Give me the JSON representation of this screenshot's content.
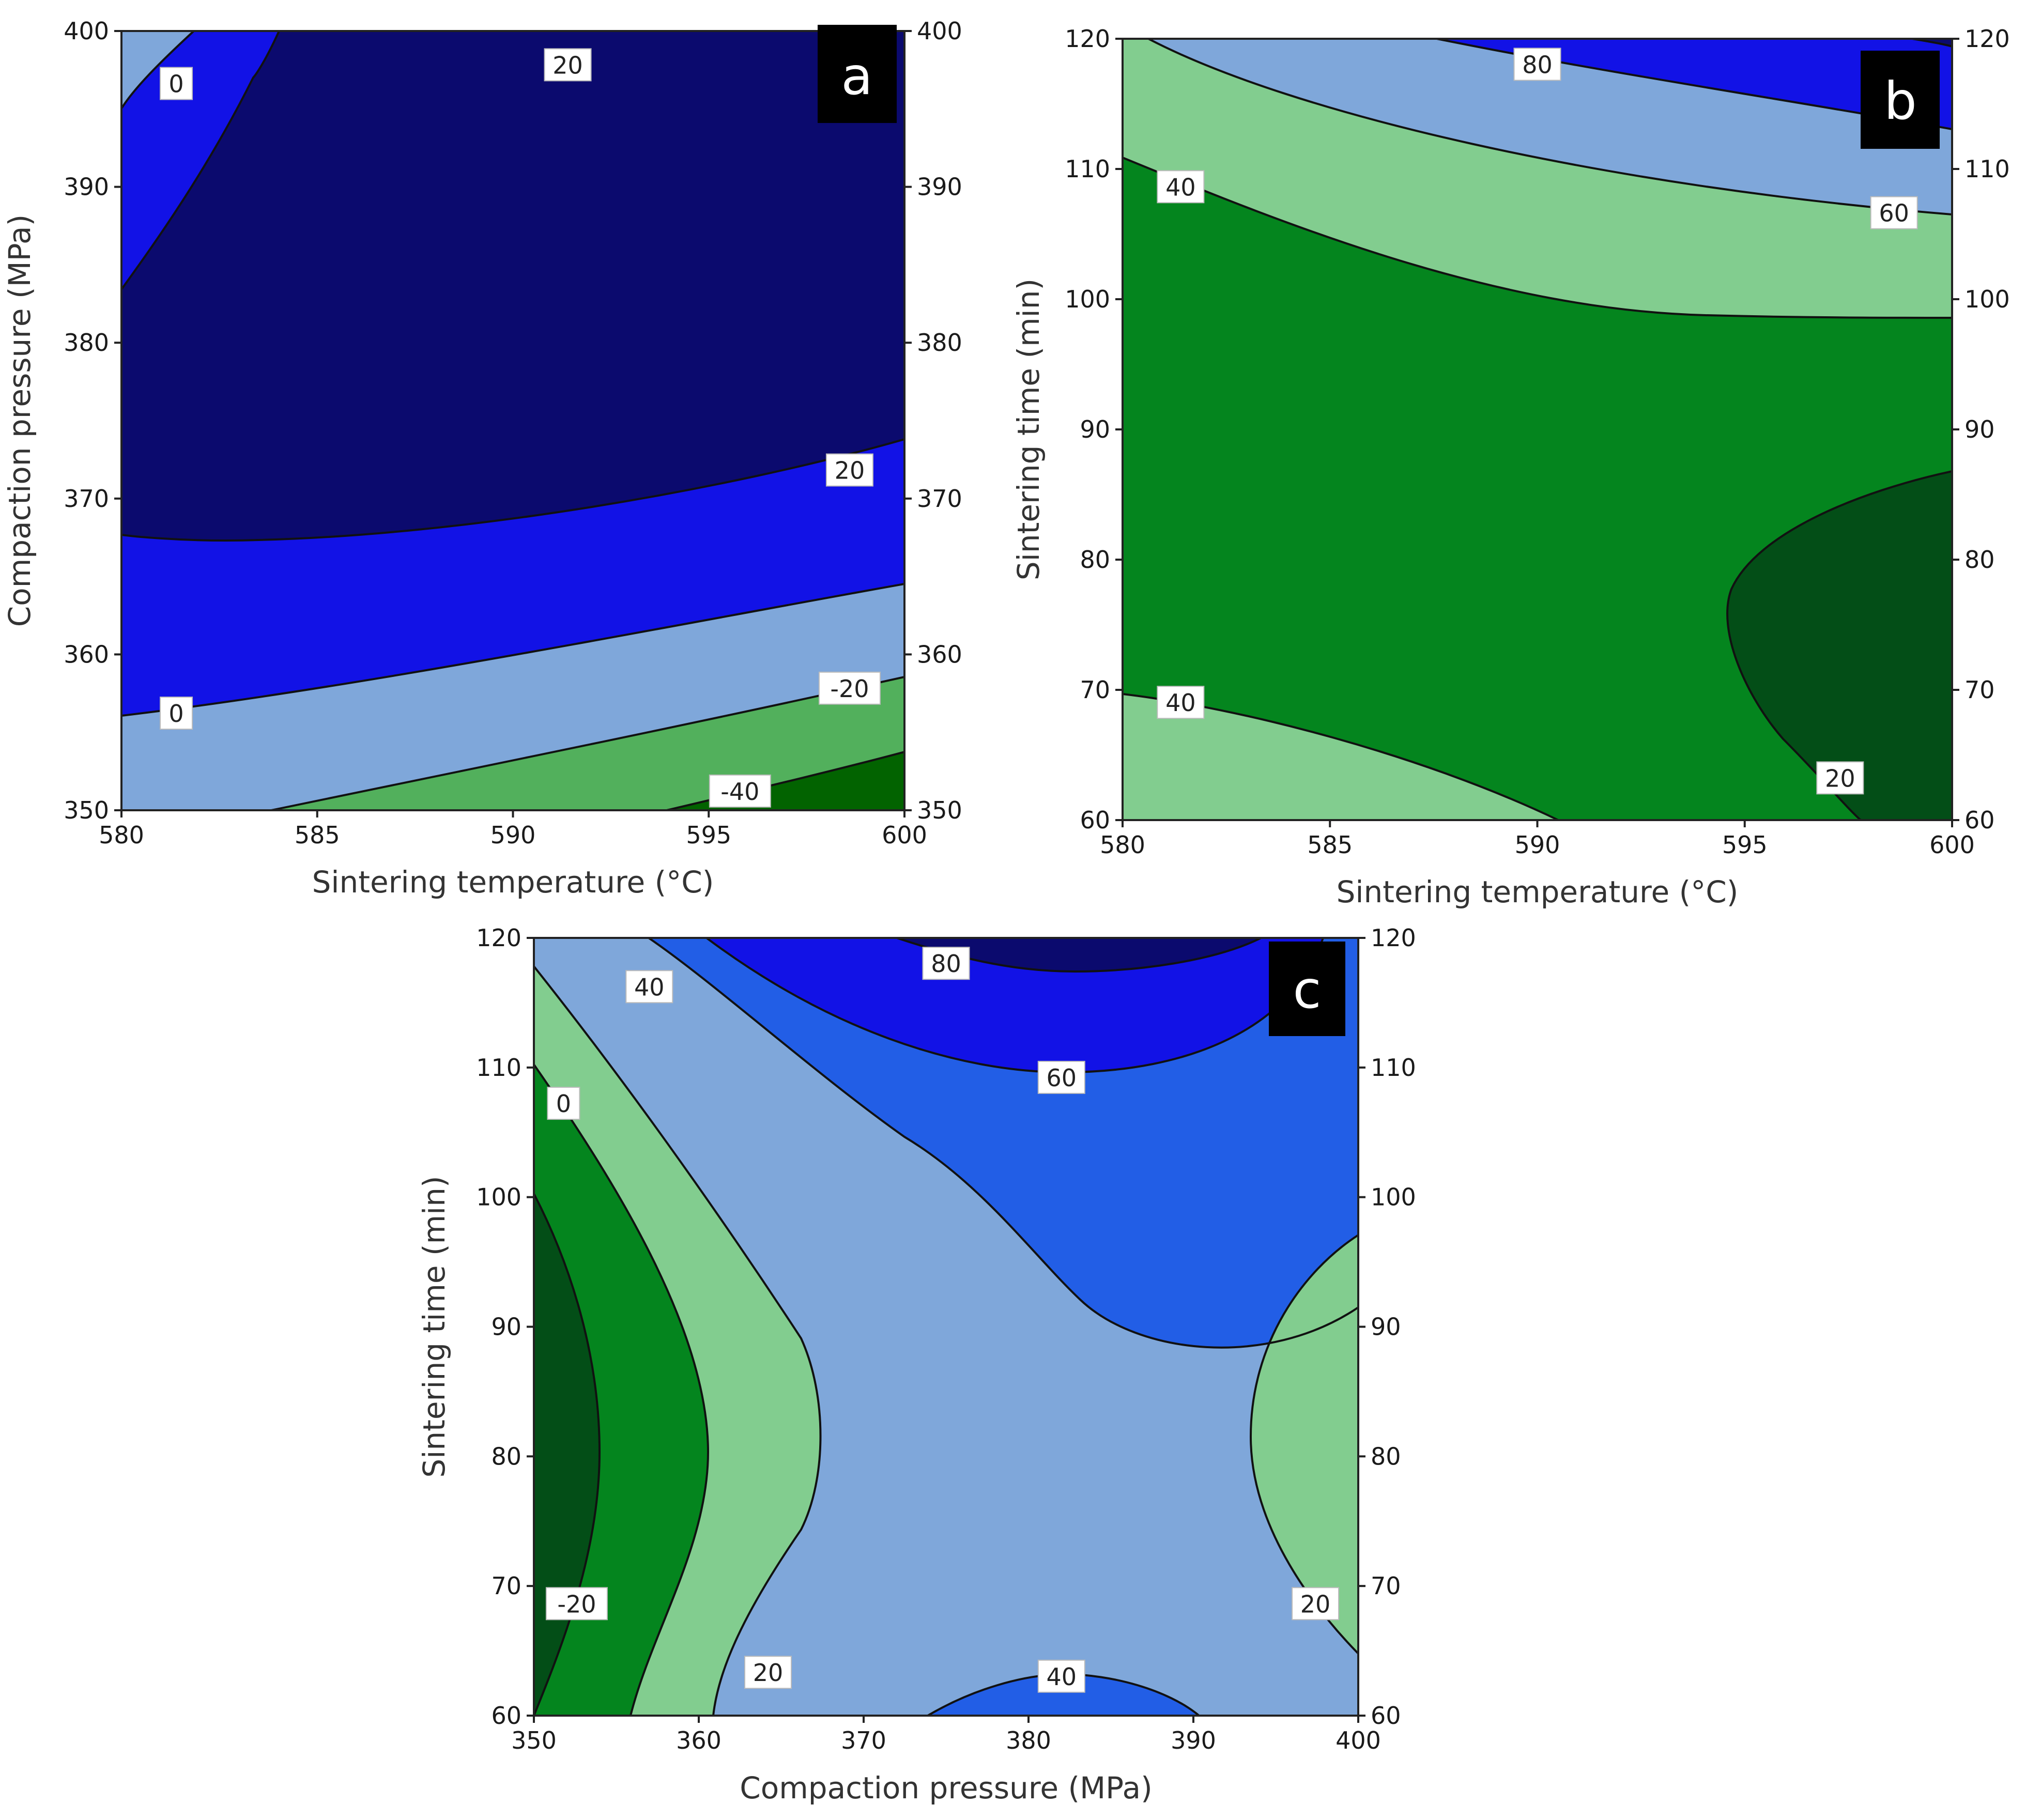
{
  "colors": {
    "very_dark_blue": "#0b0a6e",
    "blue": "#1212e6",
    "medium_blue": "#225ee6",
    "light_blue": "#7fa7da",
    "light_green": "#82cd8f",
    "green": "#04851e",
    "mid_green": "#52b05c",
    "dark_green": "#034e17",
    "darkest_green": "#026300",
    "label_bg": "#000000",
    "label_fg": "#ffffff"
  },
  "chart_data": [
    {
      "type": "contour",
      "panel": "a",
      "xlabel": "Sintering temperature (°C)",
      "ylabel": "Compaction pressure (MPa)",
      "xlim": [
        580,
        600
      ],
      "ylim": [
        350,
        400
      ],
      "x_ticks": [
        "580",
        "585",
        "590",
        "595",
        "600"
      ],
      "y_ticks": [
        "350",
        "360",
        "370",
        "380",
        "390",
        "400"
      ],
      "y_ticks_right": [
        "350",
        "360",
        "370",
        "380",
        "390",
        "400"
      ],
      "contour_levels": [
        -40,
        -20,
        0,
        20
      ],
      "contour_labels": [
        {
          "text": "0",
          "x": 581.4,
          "y": 396.6
        },
        {
          "text": "20",
          "x": 591.4,
          "y": 397.8
        },
        {
          "text": "20",
          "x": 598.6,
          "y": 371.8
        },
        {
          "text": "0",
          "x": 581.4,
          "y": 356.2
        },
        {
          "text": "-20",
          "x": 598.6,
          "y": 357.8
        },
        {
          "text": "-40",
          "x": 595.8,
          "y": 351.2
        }
      ]
    },
    {
      "type": "contour",
      "panel": "b",
      "xlabel": "Sintering temperature (°C)",
      "ylabel": "Sintering time (min)",
      "xlim": [
        580,
        600
      ],
      "ylim": [
        60,
        120
      ],
      "x_ticks": [
        "580",
        "585",
        "590",
        "595",
        "600"
      ],
      "y_ticks": [
        "60",
        "70",
        "80",
        "90",
        "100",
        "110",
        "120"
      ],
      "y_ticks_right": [
        "60",
        "70",
        "80",
        "90",
        "100",
        "110",
        "120"
      ],
      "contour_levels": [
        20,
        40,
        60,
        80
      ],
      "contour_labels": [
        {
          "text": "80",
          "x": 590.0,
          "y": 118.0
        },
        {
          "text": "40",
          "x": 581.4,
          "y": 108.6
        },
        {
          "text": "60",
          "x": 598.6,
          "y": 106.6
        },
        {
          "text": "40",
          "x": 581.4,
          "y": 69.0
        },
        {
          "text": "20",
          "x": 597.3,
          "y": 63.2
        }
      ]
    },
    {
      "type": "contour",
      "panel": "c",
      "xlabel": "Compaction pressure (MPa)",
      "ylabel": "Sintering time (min)",
      "xlim": [
        350,
        400
      ],
      "ylim": [
        60,
        120
      ],
      "x_ticks": [
        "350",
        "360",
        "370",
        "380",
        "390",
        "400"
      ],
      "y_ticks": [
        "60",
        "70",
        "80",
        "90",
        "100",
        "110",
        "120"
      ],
      "y_ticks_right": [
        "60",
        "70",
        "80",
        "90",
        "100",
        "110",
        "120"
      ],
      "contour_levels": [
        -20,
        0,
        20,
        40,
        60,
        80
      ],
      "contour_labels": [
        {
          "text": "80",
          "x": 375.0,
          "y": 118.0
        },
        {
          "text": "40",
          "x": 357.0,
          "y": 116.2
        },
        {
          "text": "60",
          "x": 382.0,
          "y": 109.2
        },
        {
          "text": "0",
          "x": 351.8,
          "y": 107.2
        },
        {
          "text": "-20",
          "x": 352.6,
          "y": 68.6
        },
        {
          "text": "20",
          "x": 397.4,
          "y": 68.6
        },
        {
          "text": "20",
          "x": 364.2,
          "y": 63.3
        },
        {
          "text": "40",
          "x": 382.0,
          "y": 63.0
        }
      ]
    }
  ]
}
